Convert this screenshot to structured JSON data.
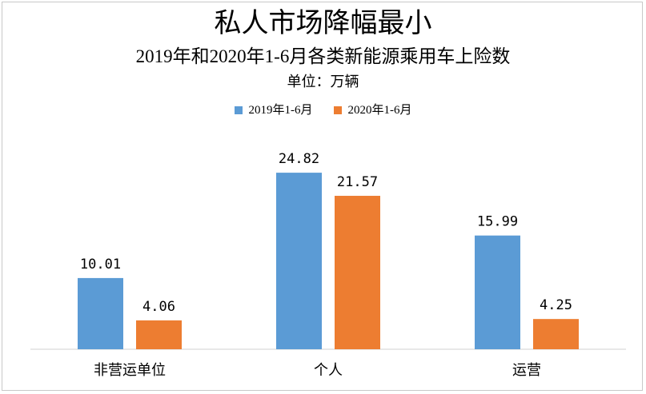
{
  "chart_data": {
    "type": "bar",
    "title": "私人市场降幅最小",
    "subtitle": "2019年和2020年1-6月各类新能源乘用车上险数",
    "unit_label": "单位：万辆",
    "categories": [
      "非营运单位",
      "个人",
      "运营"
    ],
    "series": [
      {
        "name": "2019年1-6月",
        "color": "#5b9bd5",
        "values": [
          10.01,
          24.82,
          15.99
        ],
        "labels": [
          "10.01",
          "24.82",
          "15.99"
        ]
      },
      {
        "name": "2020年1-6月",
        "color": "#ed7d31",
        "values": [
          4.06,
          21.57,
          4.25
        ],
        "labels": [
          "4.06",
          "21.57",
          "4.25"
        ]
      }
    ],
    "ylim": [
      0,
      30
    ],
    "grid": false,
    "legend_position": "top"
  }
}
